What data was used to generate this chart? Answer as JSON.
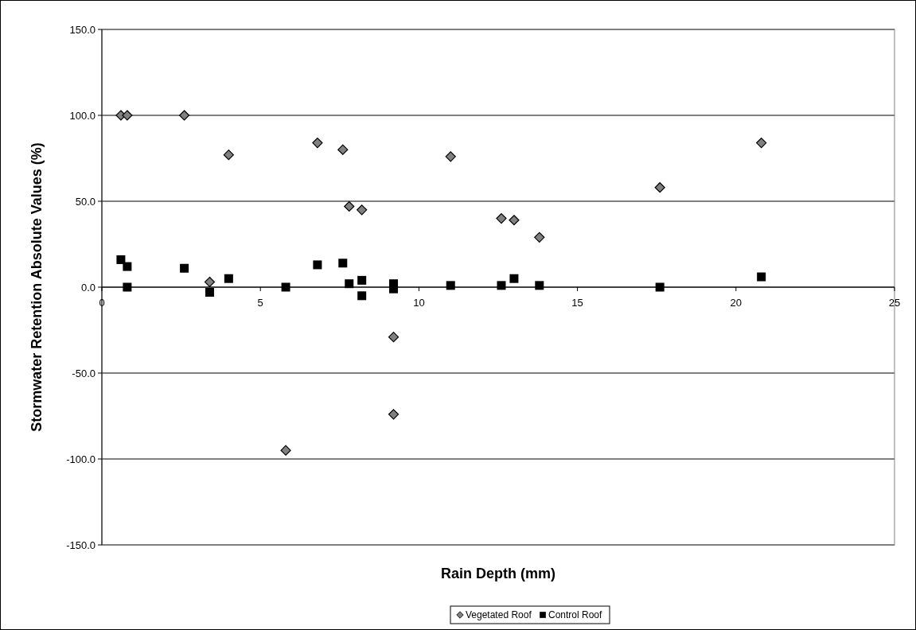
{
  "chart_data": {
    "type": "scatter",
    "xlabel": "Rain Depth (mm)",
    "ylabel": "Stormwater Retention Absolute Values (%)",
    "xlim": [
      0,
      25
    ],
    "xticks": [
      0,
      5,
      10,
      15,
      20,
      25
    ],
    "ylim": [
      -150,
      150
    ],
    "yticks": [
      {
        "value": -150,
        "label": "-150.0"
      },
      {
        "value": -100,
        "label": "-100.0"
      },
      {
        "value": -50,
        "label": "-50.0"
      },
      {
        "value": 0,
        "label": "0.0"
      },
      {
        "value": 50,
        "label": "50.0"
      },
      {
        "value": 100,
        "label": "100.0"
      },
      {
        "value": 150,
        "label": "150.0"
      }
    ],
    "grid": "y",
    "legend": "bottom",
    "series": [
      {
        "name": "Vegetated Roof",
        "color": "#808080",
        "marker": "diamond",
        "x": [
          0.6,
          0.8,
          2.6,
          3.4,
          4.0,
          5.8,
          6.8,
          7.6,
          7.8,
          8.2,
          9.2,
          9.2,
          11.0,
          12.6,
          13.0,
          13.8,
          17.6,
          20.8
        ],
        "values": [
          100,
          100,
          100,
          3,
          77,
          -95,
          84,
          80,
          47,
          45,
          -29,
          -74,
          76,
          40,
          39,
          29,
          58,
          84
        ]
      },
      {
        "name": "Control Roof",
        "color": "#000000",
        "marker": "square",
        "x": [
          0.6,
          0.8,
          0.8,
          2.6,
          3.4,
          4.0,
          5.8,
          6.8,
          7.6,
          7.8,
          8.2,
          8.2,
          9.2,
          9.2,
          11.0,
          12.6,
          13.0,
          13.8,
          17.6,
          20.8
        ],
        "values": [
          16,
          12,
          0,
          11,
          -3,
          5,
          0,
          13,
          14,
          2,
          4,
          -5,
          2,
          -1,
          1,
          1,
          5,
          1,
          0,
          6
        ]
      }
    ]
  }
}
